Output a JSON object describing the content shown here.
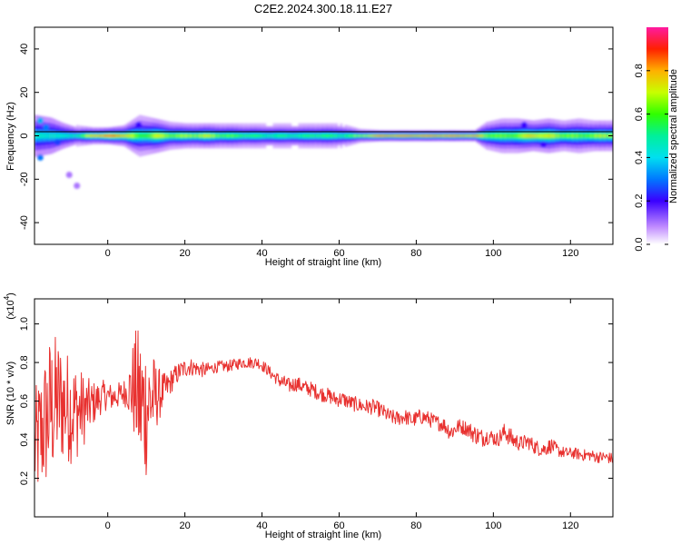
{
  "figure": {
    "title": "C2E2.2024.300.18.11.E27"
  },
  "chart_data": [
    {
      "type": "heatmap",
      "xlabel": "Height of straight line (km)",
      "ylabel": "Frequency (Hz)",
      "xlim": [
        -19,
        131
      ],
      "ylim": [
        -50,
        50
      ],
      "xticks": [
        0,
        20,
        40,
        60,
        80,
        100,
        120
      ],
      "yticks": [
        -40,
        -20,
        0,
        20,
        40
      ],
      "colorbar": {
        "label": "Normalized spectral amplitude",
        "range": [
          0.0,
          1.0
        ],
        "ticks": [
          "0.0",
          "0.2",
          "0.4",
          "0.6",
          "0.8"
        ],
        "tick_values": [
          0.0,
          0.2,
          0.4,
          0.6,
          0.8
        ]
      },
      "band": [
        {
          "x": -19,
          "amp": 0.45,
          "width": 4.0
        },
        {
          "x": -15,
          "amp": 0.5,
          "width": 3.5
        },
        {
          "x": -12,
          "amp": 0.45,
          "width": 2.5
        },
        {
          "x": -8,
          "amp": 0.55,
          "width": 1.5
        },
        {
          "x": -4,
          "amp": 0.85,
          "width": 1.2
        },
        {
          "x": 0,
          "amp": 0.95,
          "width": 1.2
        },
        {
          "x": 4,
          "amp": 0.85,
          "width": 1.5
        },
        {
          "x": 8,
          "amp": 0.6,
          "width": 3.0
        },
        {
          "x": 12,
          "amp": 0.75,
          "width": 2.5
        },
        {
          "x": 16,
          "amp": 0.7,
          "width": 2.0
        },
        {
          "x": 20,
          "amp": 0.7,
          "width": 1.8
        },
        {
          "x": 25,
          "amp": 0.75,
          "width": 1.8
        },
        {
          "x": 30,
          "amp": 0.65,
          "width": 1.8
        },
        {
          "x": 35,
          "amp": 0.6,
          "width": 1.8
        },
        {
          "x": 40,
          "amp": 0.55,
          "width": 1.8
        },
        {
          "x": 45,
          "amp": 0.55,
          "width": 1.8
        },
        {
          "x": 50,
          "amp": 0.55,
          "width": 1.8
        },
        {
          "x": 55,
          "amp": 0.6,
          "width": 1.8
        },
        {
          "x": 60,
          "amp": 0.55,
          "width": 1.8
        },
        {
          "x": 65,
          "amp": 0.7,
          "width": 1.0
        },
        {
          "x": 70,
          "amp": 0.95,
          "width": 0.8
        },
        {
          "x": 75,
          "amp": 0.95,
          "width": 0.8
        },
        {
          "x": 80,
          "amp": 0.95,
          "width": 0.8
        },
        {
          "x": 85,
          "amp": 0.95,
          "width": 0.8
        },
        {
          "x": 90,
          "amp": 0.95,
          "width": 0.8
        },
        {
          "x": 95,
          "amp": 0.9,
          "width": 0.8
        },
        {
          "x": 98,
          "amp": 0.7,
          "width": 2.0
        },
        {
          "x": 102,
          "amp": 0.65,
          "width": 2.5
        },
        {
          "x": 106,
          "amp": 0.7,
          "width": 2.5
        },
        {
          "x": 110,
          "amp": 0.8,
          "width": 2.2
        },
        {
          "x": 114,
          "amp": 0.75,
          "width": 2.5
        },
        {
          "x": 118,
          "amp": 0.7,
          "width": 2.2
        },
        {
          "x": 122,
          "amp": 0.65,
          "width": 2.5
        },
        {
          "x": 126,
          "amp": 0.7,
          "width": 2.2
        },
        {
          "x": 131,
          "amp": 0.75,
          "width": 2.2
        }
      ],
      "blobs": [
        {
          "x": -17.5,
          "y": 7,
          "amp": 0.35
        },
        {
          "x": -16,
          "y": 4,
          "amp": 0.3
        },
        {
          "x": -17.5,
          "y": -10,
          "amp": 0.3
        },
        {
          "x": -13,
          "y": -3,
          "amp": 0.25
        },
        {
          "x": -10,
          "y": -18,
          "amp": 0.1
        },
        {
          "x": -8,
          "y": -23,
          "amp": 0.1
        },
        {
          "x": 8,
          "y": 5,
          "amp": 0.2
        },
        {
          "x": 108,
          "y": 5,
          "amp": 0.2
        },
        {
          "x": 113,
          "y": -4,
          "amp": 0.2
        }
      ]
    },
    {
      "type": "line",
      "xlabel": "Height of straight line (km)",
      "ylabel": "SNR (10 * v/v)",
      "multiplier": "(x10",
      "multiplier_exp": "4",
      "xlim": [
        -19,
        131
      ],
      "ylim": [
        0.0,
        1.13
      ],
      "xticks": [
        0,
        20,
        40,
        60,
        80,
        100,
        120
      ],
      "yticks": [
        0.2,
        0.4,
        0.6,
        0.8,
        1.0
      ],
      "series": [
        {
          "color": "#e8312f",
          "x": [
            -19,
            -17,
            -15,
            -13,
            -11,
            -9,
            -7,
            -5,
            -3,
            -1,
            1,
            3,
            5,
            7,
            9,
            11,
            13,
            15,
            17,
            19,
            21,
            23,
            25,
            27,
            29,
            31,
            33,
            35,
            37,
            39,
            41,
            43,
            45,
            47,
            49,
            51,
            53,
            55,
            57,
            59,
            61,
            63,
            65,
            67,
            69,
            71,
            73,
            75,
            77,
            79,
            81,
            83,
            85,
            87,
            89,
            91,
            93,
            95,
            97,
            99,
            101,
            103,
            105,
            107,
            109,
            111,
            113,
            115,
            117,
            119,
            121,
            123,
            125,
            127,
            129,
            131
          ],
          "y": [
            0.35,
            0.45,
            0.55,
            0.6,
            0.58,
            0.55,
            0.55,
            0.57,
            0.6,
            0.63,
            0.62,
            0.63,
            0.65,
            0.67,
            0.55,
            0.6,
            0.63,
            0.66,
            0.72,
            0.76,
            0.78,
            0.77,
            0.76,
            0.77,
            0.78,
            0.78,
            0.79,
            0.8,
            0.8,
            0.8,
            0.77,
            0.73,
            0.7,
            0.68,
            0.69,
            0.67,
            0.66,
            0.64,
            0.63,
            0.61,
            0.61,
            0.59,
            0.58,
            0.57,
            0.57,
            0.55,
            0.52,
            0.51,
            0.52,
            0.5,
            0.52,
            0.51,
            0.49,
            0.48,
            0.44,
            0.47,
            0.46,
            0.43,
            0.41,
            0.42,
            0.4,
            0.44,
            0.4,
            0.38,
            0.39,
            0.36,
            0.35,
            0.37,
            0.34,
            0.33,
            0.33,
            0.32,
            0.32,
            0.31,
            0.31,
            0.3
          ],
          "noise": [
            0.3,
            0.35,
            0.4,
            0.35,
            0.3,
            0.28,
            0.22,
            0.15,
            0.1,
            0.08,
            0.07,
            0.07,
            0.08,
            0.3,
            0.45,
            0.3,
            0.15,
            0.08,
            0.06,
            0.05,
            0.05,
            0.04,
            0.04,
            0.03,
            0.03,
            0.03,
            0.03,
            0.03,
            0.03,
            0.03,
            0.03,
            0.03,
            0.04,
            0.04,
            0.04,
            0.04,
            0.04,
            0.04,
            0.04,
            0.04,
            0.04,
            0.04,
            0.04,
            0.04,
            0.04,
            0.04,
            0.04,
            0.04,
            0.04,
            0.04,
            0.04,
            0.04,
            0.04,
            0.04,
            0.05,
            0.04,
            0.04,
            0.05,
            0.05,
            0.04,
            0.04,
            0.05,
            0.05,
            0.04,
            0.04,
            0.04,
            0.04,
            0.04,
            0.03,
            0.03,
            0.03,
            0.03,
            0.03,
            0.03,
            0.03,
            0.03
          ]
        }
      ]
    }
  ]
}
